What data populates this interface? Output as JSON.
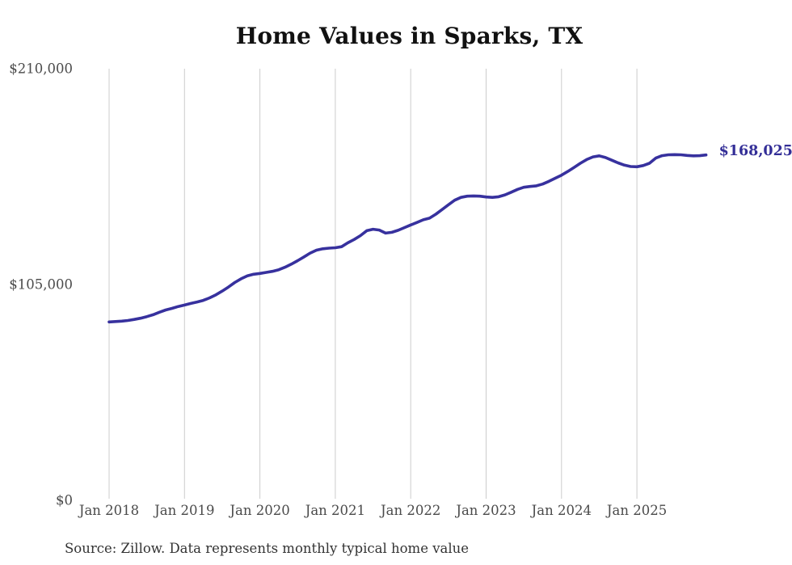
{
  "title": "Home Values in Sparks, TX",
  "source_note": "Source: Zillow. Data represents monthly typical home value",
  "chart_data": {
    "type": "line",
    "title": "Home Values in Sparks, TX",
    "xlabel": "",
    "ylabel": "",
    "ylim": [
      0,
      210000
    ],
    "grid": "vertical-only",
    "legend": "none",
    "line_color": "#37319e",
    "end_label_color": "#332e97",
    "grid_color": "#cccccc",
    "tick_label_color": "#4a4a4a",
    "latest_value": 168025,
    "latest_value_label": "$168,025",
    "y_ticks": [
      {
        "value": 0,
        "label": "$0"
      },
      {
        "value": 105000,
        "label": "$105,000"
      },
      {
        "value": 210000,
        "label": "$210,000"
      }
    ],
    "x_tick_labels": [
      "Jan 2018",
      "Jan 2019",
      "Jan 2020",
      "Jan 2021",
      "Jan 2022",
      "Jan 2023",
      "Jan 2024",
      "Jan 2025"
    ],
    "x_tick_month_indices": [
      0,
      12,
      24,
      36,
      48,
      60,
      72,
      84
    ],
    "series": [
      {
        "name": "Monthly typical home value",
        "start_month": "2018-01",
        "frequency": "monthly",
        "values": [
          86800,
          87000,
          87200,
          87500,
          88000,
          88600,
          89400,
          90300,
          91500,
          92600,
          93400,
          94300,
          95000,
          95800,
          96500,
          97300,
          98500,
          100000,
          101800,
          103800,
          106000,
          107800,
          109200,
          110000,
          110400,
          110900,
          111400,
          112200,
          113400,
          114900,
          116600,
          118400,
          120300,
          121700,
          122400,
          122700,
          122900,
          123400,
          125300,
          126900,
          128800,
          131200,
          131900,
          131500,
          130000,
          130400,
          131400,
          132700,
          134000,
          135200,
          136500,
          137300,
          139200,
          141500,
          143800,
          146000,
          147400,
          148000,
          148100,
          148000,
          147600,
          147400,
          147700,
          148600,
          149900,
          151300,
          152300,
          152700,
          153000,
          153900,
          155200,
          156700,
          158200,
          160000,
          162000,
          164000,
          165800,
          167100,
          167600,
          166800,
          165500,
          164200,
          163100,
          162400,
          162300,
          162900,
          164000,
          166500,
          167700,
          168100,
          168200,
          168100,
          167800,
          167600,
          167700,
          168025
        ]
      }
    ]
  }
}
